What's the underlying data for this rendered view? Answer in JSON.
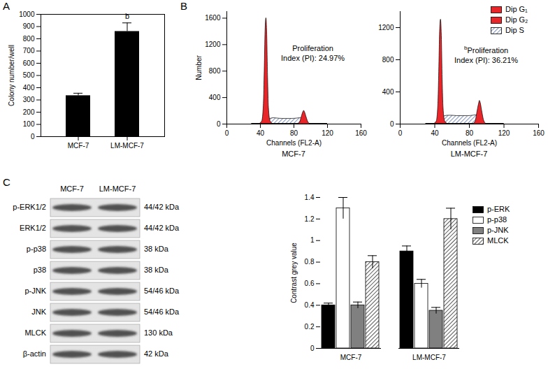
{
  "chart_data": [
    {
      "panel": "A",
      "type": "bar",
      "categories": [
        "MCF-7",
        "LM-MCF-7"
      ],
      "values": [
        335,
        860
      ],
      "errors": [
        20,
        70
      ],
      "color": "#000000",
      "ylabel": "Colony number/well",
      "ylim": [
        0,
        1000
      ],
      "yticks": [
        0,
        100,
        200,
        300,
        400,
        500,
        600,
        700,
        800,
        900,
        1000
      ],
      "annotations": [
        {
          "category": "LM-MCF-7",
          "text": "b"
        }
      ]
    },
    {
      "panel": "B",
      "type": "area",
      "title": "MCF-7",
      "xlabel": "Channels (FL2-A)",
      "ylabel": "Number",
      "x": [
        30,
        38,
        42,
        44,
        45,
        46,
        47,
        48,
        49,
        50,
        52,
        56,
        60,
        66,
        72,
        78,
        84,
        87,
        89,
        91,
        92,
        93,
        95,
        97,
        100,
        106,
        120
      ],
      "xlim": [
        0,
        160
      ],
      "xticks": [
        0,
        40,
        80,
        120,
        160
      ],
      "ylim": [
        0,
        1700
      ],
      "yticks": [
        0,
        400,
        800,
        1200,
        1600
      ],
      "stacked": false,
      "series": [
        {
          "name": "Dip G₁",
          "color": "#e8262a",
          "values": [
            0,
            0,
            40,
            300,
            800,
            1400,
            1600,
            1350,
            700,
            250,
            40,
            0,
            0,
            0,
            0,
            0,
            0,
            0,
            0,
            0,
            0,
            0,
            0,
            0,
            0,
            0,
            0
          ]
        },
        {
          "name": "Dip G₂",
          "color": "#e8262a",
          "values": [
            0,
            0,
            0,
            0,
            0,
            0,
            0,
            0,
            0,
            0,
            0,
            0,
            0,
            0,
            0,
            0,
            0,
            20,
            100,
            180,
            200,
            180,
            100,
            30,
            0,
            0,
            0
          ]
        },
        {
          "name": "Dip S",
          "color": "#3b5998",
          "line_style": "hatched",
          "values": [
            0,
            0,
            0,
            0,
            0,
            0,
            0,
            20,
            50,
            70,
            80,
            90,
            85,
            80,
            80,
            80,
            85,
            90,
            85,
            70,
            60,
            40,
            15,
            5,
            0,
            0,
            0
          ]
        }
      ],
      "annotation": {
        "lines": [
          "Proliferation",
          "Index (PI): 24.97%"
        ]
      }
    },
    {
      "type": "area",
      "title": "LM-MCF-7",
      "xlabel": "Channels (FL2-A)",
      "x": [
        30,
        38,
        42,
        44,
        45,
        46,
        47,
        48,
        49,
        50,
        52,
        56,
        60,
        66,
        72,
        78,
        84,
        87,
        89,
        91,
        92,
        93,
        95,
        97,
        100,
        106,
        120
      ],
      "xlim": [
        0,
        160
      ],
      "xticks": [
        0,
        40,
        80,
        120,
        160
      ],
      "ylim": [
        0,
        1400
      ],
      "yticks": [
        0,
        400,
        800,
        1200
      ],
      "stacked": false,
      "legend": "top-right",
      "series": [
        {
          "name": "Dip G₁",
          "color": "#e8262a",
          "values": [
            0,
            0,
            30,
            250,
            650,
            1150,
            1300,
            1100,
            550,
            200,
            30,
            0,
            0,
            0,
            0,
            0,
            0,
            0,
            0,
            0,
            0,
            0,
            0,
            0,
            0,
            0,
            0
          ]
        },
        {
          "name": "Dip G₂",
          "color": "#e8262a",
          "values": [
            0,
            0,
            0,
            0,
            0,
            0,
            0,
            0,
            0,
            0,
            0,
            0,
            0,
            0,
            0,
            0,
            0,
            30,
            140,
            250,
            290,
            260,
            140,
            40,
            0,
            0,
            0
          ]
        },
        {
          "name": "Dip S",
          "color": "#3b5998",
          "line_style": "hatched",
          "values": [
            0,
            0,
            0,
            0,
            0,
            0,
            0,
            20,
            60,
            90,
            100,
            105,
            105,
            100,
            100,
            100,
            105,
            110,
            105,
            90,
            70,
            50,
            20,
            5,
            0,
            0,
            0
          ]
        }
      ],
      "annotation": {
        "mark": "b",
        "lines": [
          "Proliferation",
          "Index (PI): 36.21%"
        ]
      }
    },
    {
      "panel": "C",
      "type": "blot",
      "columns": [
        "MCF-7",
        "LM-MCF-7"
      ],
      "rows": [
        {
          "label": "p-ERK1/2",
          "size": "44/42 kDa"
        },
        {
          "label": "ERK1/2",
          "size": "44/42 kDa"
        },
        {
          "label": "p-p38",
          "size": "38 kDa"
        },
        {
          "label": "p38",
          "size": "38 kDa"
        },
        {
          "label": "p-JNK",
          "size": "54/46 kDa"
        },
        {
          "label": "JNK",
          "size": "54/46 kDa"
        },
        {
          "label": "MLCK",
          "size": "130 kDa"
        },
        {
          "label": "β-actin",
          "size": "42 kDa"
        }
      ]
    },
    {
      "type": "bar",
      "categories": [
        "MCF-7",
        "LM-MCF-7"
      ],
      "ylabel": "Contrast grey value",
      "ylim": [
        0,
        1.4
      ],
      "yticks": [
        0,
        0.2,
        0.4,
        0.6,
        0.8,
        1,
        1.2,
        1.4
      ],
      "legend": "right",
      "series": [
        {
          "name": "p-ERK",
          "color": "#000000",
          "values": [
            0.4,
            0.9
          ],
          "errors": [
            0.02,
            0.05
          ]
        },
        {
          "name": "p-p38",
          "color": "#ffffff",
          "values": [
            1.3,
            0.6
          ],
          "errors": [
            0.1,
            0.04
          ]
        },
        {
          "name": "p-JNK",
          "color": "#808080",
          "values": [
            0.4,
            0.35
          ],
          "errors": [
            0.03,
            0.03
          ]
        },
        {
          "name": "MLCK",
          "color": "#000000",
          "line_style": "hatched",
          "values": [
            0.8,
            1.2
          ],
          "errors": [
            0.06,
            0.1
          ]
        }
      ]
    }
  ]
}
